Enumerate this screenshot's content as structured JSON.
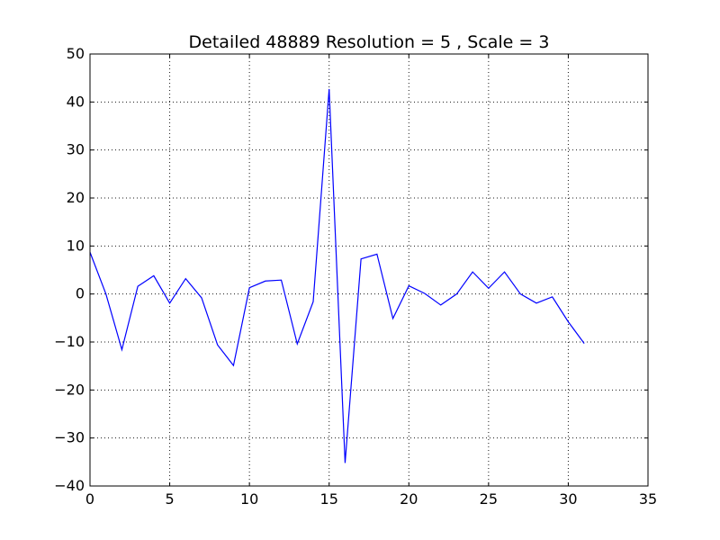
{
  "chart_data": {
    "type": "line",
    "title": "Detailed 48889 Resolution = 5 , Scale = 3",
    "xlabel": "",
    "ylabel": "",
    "xlim": [
      0,
      35
    ],
    "ylim": [
      -40,
      50
    ],
    "xticks": [
      0,
      5,
      10,
      15,
      20,
      25,
      30,
      35
    ],
    "yticks": [
      -40,
      -30,
      -20,
      -10,
      0,
      10,
      20,
      30,
      40,
      50
    ],
    "xtick_labels": [
      "0",
      "5",
      "10",
      "15",
      "20",
      "25",
      "30",
      "35"
    ],
    "ytick_labels": [
      "−40",
      "−30",
      "−20",
      "−10",
      "0",
      "10",
      "20",
      "30",
      "40",
      "50"
    ],
    "grid": true,
    "line_color": "#0000ff",
    "series": [
      {
        "x": [
          0,
          1,
          2,
          3,
          4,
          5,
          6,
          7,
          8,
          9,
          10,
          11,
          12,
          13,
          14,
          15,
          16,
          17,
          18,
          19,
          20,
          21,
          22,
          23,
          24,
          25,
          26,
          27,
          28,
          29,
          30,
          31
        ],
        "values": [
          8.7,
          0,
          -11.6,
          1.6,
          3.8,
          -1.9,
          3.2,
          -0.8,
          -10.6,
          -14.9,
          1.3,
          2.7,
          2.9,
          -10.4,
          -1.6,
          42.7,
          -35.2,
          7.3,
          8.3,
          -5.1,
          1.7,
          0.1,
          -2.3,
          0,
          4.6,
          1.2,
          4.6,
          0,
          -1.9,
          -0.6,
          -5.8,
          -10.3
        ]
      }
    ]
  }
}
